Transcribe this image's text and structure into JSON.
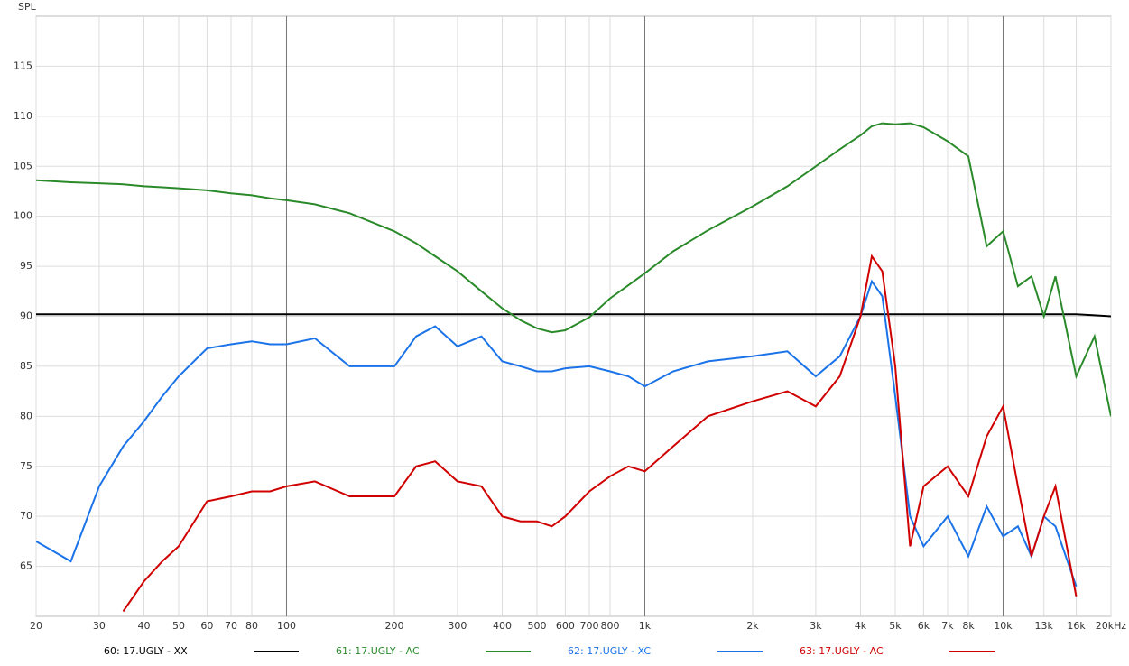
{
  "chart_data": {
    "type": "line",
    "y_label": "SPL",
    "log_x": true,
    "grid": true,
    "legend": "bottom",
    "xlim": [
      20,
      20000
    ],
    "ylim": [
      60,
      120
    ],
    "yticks": [
      65,
      70,
      75,
      80,
      85,
      90,
      95,
      100,
      105,
      110,
      115
    ],
    "xticks": [
      20,
      30,
      40,
      50,
      60,
      70,
      80,
      100,
      200,
      300,
      400,
      500,
      600,
      700,
      800,
      {
        "value": 1000,
        "label": "1k"
      },
      {
        "value": 2000,
        "label": "2k"
      },
      {
        "value": 3000,
        "label": "3k"
      },
      {
        "value": 4000,
        "label": "4k"
      },
      {
        "value": 5000,
        "label": "5k"
      },
      {
        "value": 6000,
        "label": "6k"
      },
      {
        "value": 7000,
        "label": "7k"
      },
      {
        "value": 8000,
        "label": "8k"
      },
      {
        "value": 10000,
        "label": "10k"
      },
      {
        "value": 13000,
        "label": "13k"
      },
      {
        "value": 16000,
        "label": "16k"
      },
      {
        "value": 20000,
        "label": "20kHz"
      }
    ],
    "x": [
      20,
      25,
      30,
      35,
      40,
      45,
      50,
      60,
      70,
      80,
      90,
      100,
      120,
      150,
      200,
      230,
      260,
      300,
      350,
      400,
      450,
      500,
      550,
      600,
      700,
      800,
      900,
      1000,
      1200,
      1500,
      2000,
      2500,
      3000,
      3500,
      4000,
      4300,
      4600,
      5000,
      5500,
      6000,
      7000,
      8000,
      9000,
      10000,
      11000,
      12000,
      13000,
      14000,
      16000,
      18000,
      20000
    ],
    "series": [
      {
        "name": "60: 17.UGLY - XX",
        "color": "#000000",
        "values": [
          90.2,
          90.2,
          90.2,
          90.2,
          90.2,
          90.2,
          90.2,
          90.2,
          90.2,
          90.2,
          90.2,
          90.2,
          90.2,
          90.2,
          90.2,
          90.2,
          90.2,
          90.2,
          90.2,
          90.2,
          90.2,
          90.2,
          90.2,
          90.2,
          90.2,
          90.2,
          90.2,
          90.2,
          90.2,
          90.2,
          90.2,
          90.2,
          90.2,
          90.2,
          90.2,
          90.2,
          90.2,
          90.2,
          90.2,
          90.2,
          90.2,
          90.2,
          90.2,
          90.2,
          90.2,
          90.2,
          90.2,
          90.2,
          90.2,
          90.1,
          90
        ]
      },
      {
        "name": "61: 17.UGLY - AC",
        "color": "#2a8a2a",
        "values": [
          103.6,
          103.4,
          103.3,
          103.2,
          103.0,
          102.9,
          102.8,
          102.6,
          102.3,
          102.1,
          101.8,
          101.6,
          101.2,
          100.3,
          98.5,
          97.3,
          96,
          94.5,
          92.5,
          90.8,
          89.6,
          88.8,
          88.4,
          88.6,
          89.9,
          91.8,
          93.1,
          94.3,
          96.5,
          98.6,
          101,
          103,
          105,
          106.7,
          108.1,
          109,
          109.3,
          109.2,
          109.3,
          108.9,
          107.5,
          106,
          97,
          98.5,
          93,
          94,
          90,
          94,
          84,
          88,
          80
        ]
      },
      {
        "name": "62: 17.UGLY - XC",
        "color": "#1a73e8",
        "values": [
          67.5,
          65.5,
          73,
          77,
          79.5,
          82,
          84,
          86.8,
          87.2,
          87.5,
          87.2,
          87.2,
          87.8,
          85,
          85,
          88,
          89,
          87,
          88,
          85.5,
          85,
          84.5,
          84.5,
          84.8,
          85,
          84.5,
          84,
          83,
          84.5,
          85.5,
          86,
          86.5,
          84,
          86,
          90,
          93.5,
          92,
          82,
          70,
          67,
          70,
          66,
          71,
          68,
          69,
          66,
          70,
          69,
          63,
          null,
          null
        ]
      },
      {
        "name": "63: 17.UGLY - AC",
        "color": "#d00000",
        "values": [
          null,
          null,
          null,
          60.5,
          63.5,
          65.5,
          67,
          71.5,
          72,
          72.5,
          72.5,
          73,
          73.5,
          72,
          72,
          75,
          75.5,
          73.5,
          73,
          70,
          69.5,
          69.5,
          69,
          70,
          72.5,
          74,
          75,
          74.5,
          77,
          80,
          81.5,
          82.5,
          81,
          84,
          90,
          96,
          94.5,
          85,
          67,
          73,
          75,
          72,
          78,
          81,
          73,
          66,
          70,
          73,
          62,
          null,
          null
        ]
      }
    ]
  }
}
